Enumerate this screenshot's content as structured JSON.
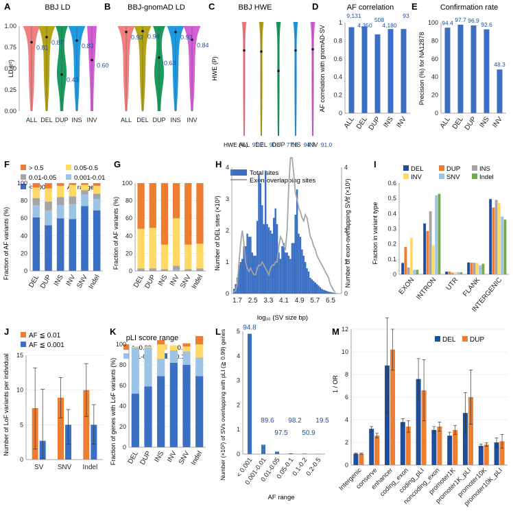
{
  "colors": {
    "blue": "#3a6fc4",
    "orange": "#ed7d31",
    "yellow": "#ffd966",
    "lightyellow": "#fff2a8",
    "grey": "#a5a5a5",
    "lightblue": "#9dc3e6",
    "green": "#70ad47",
    "navy": "#1f4e9c",
    "v_all": "#f08080",
    "v_del": "#b5a317",
    "v_dup": "#1a9a5c",
    "v_ins": "#1e9ae0",
    "v_inv": "#d45fd4"
  },
  "panels": {
    "A": {
      "letter": "A",
      "title": "BBJ LD",
      "ylabel": "LD (r²)",
      "categories": [
        "ALL",
        "DEL",
        "DUP",
        "INS",
        "INV"
      ],
      "medians": [
        "0.81",
        "0.87",
        "0.43",
        "0.83",
        "0.60"
      ],
      "ticks": [
        "0.00",
        "0.25",
        "0.50",
        "0.75",
        "1.00"
      ]
    },
    "B": {
      "letter": "B",
      "title": "BBJ-gnomAD LD",
      "categories": [
        "ALL",
        "DEL",
        "DUP",
        "INS",
        "INV"
      ],
      "medians": [
        "0.93",
        "0.94",
        "0.63",
        "0.93",
        "0.84"
      ]
    },
    "C": {
      "letter": "C",
      "title": "BBJ HWE",
      "ylabel": "HWE (P)",
      "categories": [
        "ALL",
        "DEL",
        "DUP",
        "INS",
        "INV"
      ],
      "hwe_label": "HWE (%)",
      "hwe": [
        "91.2",
        "90.5",
        "77.5",
        "94.3",
        "91.0"
      ]
    },
    "D": {
      "letter": "D",
      "title": "AF correlation",
      "ylabel": "AF correlation with gnomAD-SV",
      "counts": [
        "9,131",
        "4,350",
        "508",
        "4,180",
        "93"
      ]
    },
    "E": {
      "letter": "E",
      "title": "Confirmation rate",
      "ylabel": "Precision (%) for NA12878",
      "labels": [
        "94.4",
        "97.7",
        "96.9",
        "92.6",
        "48.3"
      ]
    },
    "F": {
      "letter": "F",
      "ylabel": "Fraction of AF variants (%)",
      "legend_title": "AF range",
      "legend": [
        "> 0.5",
        "0.05-0.5",
        "0.01-0.05",
        "0.001-0.01",
        "<0.001"
      ]
    },
    "G": {
      "letter": "G",
      "ylabel": "Fraction of AF variants (%)"
    },
    "H": {
      "letter": "H",
      "ylabel_left": "Number of DEL sites (×10³)",
      "ylabel_right": "Number of exon-overlapping SVs (×10²)",
      "xlabel": "log₁₀ (SV size bp)",
      "legend": [
        "Total sites",
        "Exon-overlapping sites"
      ]
    },
    "I": {
      "letter": "I",
      "ylabel": "Fraction in variant type",
      "legend": [
        "DEL",
        "DUP",
        "INS",
        "INV",
        "SNV",
        "Indel"
      ]
    },
    "J": {
      "letter": "J",
      "ylabel": "Number of LoF variants per individual",
      "legend": [
        "AF ≦ 0.01",
        "AF ≦ 0.001"
      ]
    },
    "K": {
      "letter": "K",
      "title": "pLI score range",
      "ylabel": "Fraction of genes with LoF variants (%)",
      "legend": [
        "≧ 0.99",
        "≧ 0.9",
        "0.1-0.9",
        "< 0.1"
      ]
    },
    "L": {
      "letter": "L",
      "ylabel": "Number (×10²) of SVs overlapping with pLI (≧ 0.99) genes",
      "xlabel": "AF range"
    },
    "M": {
      "letter": "M",
      "ylabel": "1 / OR",
      "legend": [
        "DEL",
        "DUP"
      ]
    }
  },
  "chart_data": [
    {
      "panel": "A",
      "type": "violin",
      "title": "BBJ LD",
      "categories": [
        "ALL",
        "DEL",
        "DUP",
        "INS",
        "INV"
      ],
      "values": [
        0.81,
        0.87,
        0.43,
        0.83,
        0.6
      ],
      "ylim": [
        0,
        1
      ]
    },
    {
      "panel": "B",
      "type": "violin",
      "title": "BBJ-gnomAD LD",
      "categories": [
        "ALL",
        "DEL",
        "DUP",
        "INS",
        "INV"
      ],
      "values": [
        0.93,
        0.94,
        0.63,
        0.93,
        0.84
      ],
      "ylim": [
        0,
        1
      ]
    },
    {
      "panel": "C",
      "type": "violin",
      "title": "BBJ HWE",
      "categories": [
        "ALL",
        "DEL",
        "DUP",
        "INS",
        "INV"
      ],
      "values": [
        0.75,
        0.74,
        0.57,
        0.75,
        0.76
      ],
      "ylim": [
        0,
        1
      ]
    },
    {
      "panel": "D",
      "type": "bar",
      "title": "AF correlation",
      "categories": [
        "ALL",
        "DEL",
        "DUP",
        "INS",
        "INV"
      ],
      "values": [
        0.95,
        0.96,
        0.87,
        0.93,
        0.93
      ],
      "ylim": [
        0,
        1
      ],
      "ticks": [
        "0",
        "0.2",
        "0.4",
        "0.6",
        "0.8",
        "1"
      ]
    },
    {
      "panel": "E",
      "type": "bar",
      "title": "Confirmation rate",
      "categories": [
        "ALL",
        "DEL",
        "DUP",
        "INS",
        "INV"
      ],
      "values": [
        94.4,
        97.7,
        96.9,
        92.6,
        48.3
      ],
      "ylim": [
        0,
        100
      ],
      "ticks": [
        "0",
        "20",
        "40",
        "60",
        "80",
        "100"
      ]
    },
    {
      "panel": "F",
      "type": "bar",
      "stacked": true,
      "categories": [
        "DEL",
        "DUP",
        "INS",
        "INV",
        "SNV",
        "Indel"
      ],
      "ticks": [
        "0",
        "20",
        "40",
        "60",
        "80",
        "100"
      ],
      "series": [
        {
          "name": "<0.001",
          "color": "blue",
          "values": [
            61,
            52,
            60,
            59,
            74,
            69
          ]
        },
        {
          "name": "0.001-0.01",
          "color": "lightblue",
          "values": [
            14,
            17,
            15,
            17,
            13,
            13
          ]
        },
        {
          "name": "0.01-0.05",
          "color": "grey",
          "values": [
            8,
            10,
            9,
            9,
            5,
            6
          ]
        },
        {
          "name": "0.05-0.5",
          "color": "yellow",
          "values": [
            12,
            15,
            13,
            13,
            6,
            9
          ]
        },
        {
          "name": "> 0.5",
          "color": "orange",
          "values": [
            5,
            6,
            3,
            2,
            2,
            3
          ]
        }
      ]
    },
    {
      "panel": "G",
      "type": "bar",
      "stacked": true,
      "categories": [
        "DEL",
        "DUP",
        "INS",
        "INV",
        "SNV",
        "Indel"
      ],
      "ticks": [
        "0",
        "20",
        "40",
        "60",
        "80",
        "100"
      ],
      "series": [
        {
          "name": "<0.001",
          "color": "blue",
          "values": [
            0,
            0,
            0,
            0,
            0,
            0
          ]
        },
        {
          "name": "0.001-0.01",
          "color": "lightblue",
          "values": [
            0,
            0,
            0,
            1,
            0,
            0
          ]
        },
        {
          "name": "0.01-0.05",
          "color": "grey",
          "values": [
            3,
            3,
            2,
            5,
            2,
            3
          ]
        },
        {
          "name": "0.05-0.5",
          "color": "yellow",
          "values": [
            45,
            46,
            28,
            54,
            28,
            28
          ]
        },
        {
          "name": "> 0.5",
          "color": "orange",
          "values": [
            52,
            51,
            70,
            40,
            70,
            69
          ]
        }
      ]
    },
    {
      "panel": "H",
      "type": "bar+line",
      "x": [
        1.7,
        2.5,
        3.3,
        4.1,
        4.9,
        5.7,
        6.5
      ],
      "xticks": [
        "1.7",
        "2.5",
        "3.3",
        "4.1",
        "4.9",
        "5.7",
        "6.5"
      ],
      "yticks": [
        "0",
        "1",
        "2",
        "3",
        "4"
      ],
      "bars": [
        0.15,
        0.3,
        0.5,
        0.9,
        1.0,
        1.1,
        1.5,
        1.5,
        1.9,
        1.8,
        1.8,
        1.3,
        1.2,
        1.2,
        2.3,
        3.8,
        3.5,
        2.8,
        2.2,
        3.9,
        2.2,
        2.1,
        2.0,
        1.9,
        2.4,
        2.7,
        2.2,
        1.3,
        1.1,
        1.5,
        1.6,
        1.3,
        1.3,
        1.2,
        1.1,
        1.6,
        1.6,
        2.5,
        3.3,
        1.9,
        1.8,
        1.4,
        1.2,
        1.0,
        0.8,
        0.7,
        0.5,
        0.45,
        0.4,
        0.35,
        0.3,
        0.25,
        0.2,
        0.15,
        0.12,
        0.1,
        0.08,
        0.06,
        0.05,
        0.04,
        0.03,
        0.02
      ],
      "line": [
        0.05,
        0.1,
        0.3,
        1.0,
        1.6,
        2.0,
        1.6,
        1.0,
        0.8,
        0.7,
        0.8,
        0.7,
        0.6,
        0.6,
        0.8,
        0.9,
        0.9,
        1.0,
        0.9,
        0.8,
        0.7,
        0.6,
        0.8,
        0.9,
        0.9,
        1.0,
        1.0,
        1.5,
        1.8,
        1.7,
        1.5,
        1.4,
        2.0,
        3.4,
        4.4,
        4.3,
        3.8,
        3.2,
        3.0,
        2.7,
        2.6,
        2.4,
        2.3,
        2.5,
        2.4,
        2.1,
        1.8,
        1.7,
        1.5,
        1.4,
        1.2,
        1.1,
        1.0,
        0.9,
        0.8,
        0.7,
        0.6,
        0.5,
        0.3,
        0.2,
        0.1,
        0.05
      ]
    },
    {
      "panel": "I",
      "type": "bar",
      "categories": [
        "EXON",
        "INTRON",
        "UTR",
        "FLANK",
        "INTERGENIC"
      ],
      "ticks": [
        "0",
        "0.1",
        "0.2",
        "0.3",
        "0.4",
        "0.5",
        "0.6"
      ],
      "ylim": [
        0,
        0.6
      ],
      "series": [
        {
          "name": "DEL",
          "color": "navy",
          "values": [
            0.075,
            0.335,
            0.018,
            0.078,
            0.495
          ]
        },
        {
          "name": "DUP",
          "color": "orange",
          "values": [
            0.18,
            0.285,
            0.018,
            0.077,
            0.44
          ]
        },
        {
          "name": "INS",
          "color": "grey",
          "values": [
            0.045,
            0.415,
            0.012,
            0.076,
            0.49
          ]
        },
        {
          "name": "INV",
          "color": "yellow",
          "values": [
            0.24,
            0.19,
            0.014,
            0.075,
            0.47
          ]
        },
        {
          "name": "SNV",
          "color": "lightblue",
          "values": [
            0.03,
            0.52,
            0.015,
            0.06,
            0.38
          ]
        },
        {
          "name": "Indel",
          "color": "green",
          "values": [
            0.03,
            0.53,
            0.014,
            0.07,
            0.36
          ]
        }
      ]
    },
    {
      "panel": "J",
      "type": "bar",
      "categories": [
        "SV",
        "SNV",
        "Indel"
      ],
      "ticks": [
        "0",
        "5",
        "10",
        "15"
      ],
      "ylim": [
        0,
        15
      ],
      "series": [
        {
          "name": "AF ≦ 0.01",
          "color": "orange",
          "values": [
            7.4,
            8.9,
            10.0
          ],
          "err_low": [
            1.5,
            6.0,
            6.2
          ],
          "err_high": [
            13.2,
            11.8,
            13.8
          ]
        },
        {
          "name": "AF ≦ 0.001",
          "color": "blue",
          "values": [
            2.7,
            5.0,
            5.0
          ],
          "err_low": [
            0.2,
            2.2,
            2.2
          ],
          "err_high": [
            10.1,
            7.2,
            7.9
          ]
        }
      ]
    },
    {
      "panel": "K",
      "type": "bar",
      "stacked": true,
      "categories": [
        "DEL",
        "DUP",
        "INS",
        "INV",
        "SNV",
        "Indel"
      ],
      "ticks": [
        "0",
        "20",
        "40",
        "60",
        "80",
        "100"
      ],
      "series": [
        {
          "name": "< 0.1",
          "color": "blue",
          "values": [
            52,
            59,
            69,
            82,
            80,
            69
          ]
        },
        {
          "name": "0.1-0.9",
          "color": "lightblue",
          "values": [
            45,
            38,
            17,
            12,
            13,
            18
          ]
        },
        {
          "name": "≧ 0.9",
          "color": "yellow",
          "values": [
            1,
            1,
            14,
            5,
            5,
            13
          ]
        },
        {
          "name": "≧ 0.99",
          "color": "orange",
          "values": [
            0,
            0,
            4,
            0,
            3,
            8
          ]
        }
      ]
    },
    {
      "panel": "L",
      "type": "bar",
      "categories": [
        "< 0.001",
        "0.001-0.01",
        "0.01-0.05",
        "0.05-0.1",
        "0.1-0.2",
        "0.2-0.5"
      ],
      "values": [
        4.9,
        0.38,
        0.1,
        0.03,
        0.02,
        0.01
      ],
      "labels": [
        "94.8",
        "89.6",
        "97.5",
        "98.2",
        "50.9",
        "19.5"
      ],
      "ticks": [
        "0",
        "1",
        "2",
        "3",
        "4",
        "5"
      ],
      "ylim": [
        0,
        5
      ]
    },
    {
      "panel": "M",
      "type": "bar",
      "categories": [
        "Intergenic",
        "conserve",
        "enhancer",
        "coding_exon",
        "coding_pLI",
        "noncoding_exon",
        "promoter1K",
        "promoter1K_pLI",
        "promoter10K",
        "promoter10K_pLI"
      ],
      "ticks": [
        "0",
        "2",
        "4",
        "6",
        "8",
        "10",
        "12"
      ],
      "ylim": [
        0,
        12
      ],
      "series": [
        {
          "name": "DEL",
          "color": "navy",
          "values": [
            1.0,
            3.2,
            8.8,
            3.8,
            7.6,
            3.1,
            2.6,
            4.6,
            1.7,
            2.0
          ],
          "err": [
            0.05,
            0.2,
            4.2,
            0.3,
            1.8,
            0.3,
            0.3,
            1.8,
            0.15,
            0.4
          ]
        },
        {
          "name": "DUP",
          "color": "orange",
          "values": [
            1.0,
            2.6,
            10.2,
            3.4,
            6.6,
            3.4,
            3.1,
            6.0,
            1.8,
            2.1
          ],
          "err": [
            0.05,
            0.2,
            1.8,
            0.5,
            2.7,
            0.4,
            0.4,
            2.4,
            0.15,
            0.6
          ]
        }
      ]
    }
  ]
}
